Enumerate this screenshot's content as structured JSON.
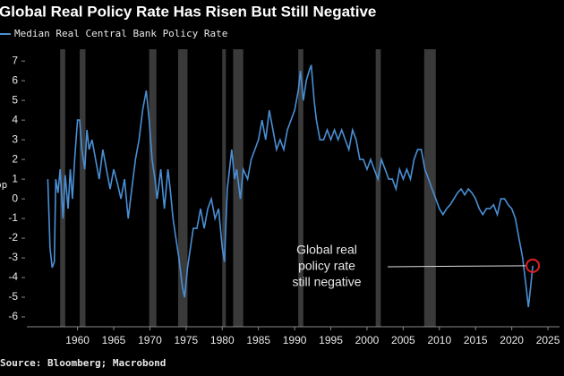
{
  "chart_data": {
    "type": "line",
    "title": "Global Real Policy Rate Has Risen But Still Negative",
    "y_label": "pp",
    "source": "Source: Bloomberg; Macrobond",
    "xlim": [
      1953,
      2026.6
    ],
    "ylim": [
      -6.5,
      7.6
    ],
    "xticks": [
      1960,
      1965,
      1970,
      1975,
      1980,
      1985,
      1990,
      1995,
      2000,
      2005,
      2010,
      2015,
      2020,
      2025
    ],
    "yticks": [
      -6,
      -5,
      -4,
      -3,
      -2,
      -1,
      0,
      1,
      2,
      3,
      4,
      5,
      6,
      7
    ],
    "grid": false,
    "shaded_periods": [
      [
        1957.6,
        1958.3
      ],
      [
        1960.3,
        1961.1
      ],
      [
        1969.9,
        1970.9
      ],
      [
        1973.9,
        1975.2
      ],
      [
        1980.0,
        1980.5
      ],
      [
        1981.5,
        1982.9
      ],
      [
        1990.5,
        1991.2
      ],
      [
        2001.2,
        2001.9
      ],
      [
        2007.9,
        2009.5
      ]
    ],
    "shade_color": "#3a3a3a",
    "x": [
      1955.9,
      1956.2,
      1956.5,
      1956.8,
      1957.0,
      1957.3,
      1957.6,
      1958.0,
      1958.3,
      1958.7,
      1959.0,
      1959.3,
      1959.6,
      1960.0,
      1960.3,
      1960.6,
      1961.0,
      1961.3,
      1961.6,
      1962.0,
      1962.5,
      1963.0,
      1963.5,
      1964.0,
      1964.5,
      1965.0,
      1965.5,
      1966.0,
      1966.5,
      1967.0,
      1967.5,
      1968.0,
      1968.5,
      1969.0,
      1969.5,
      1969.9,
      1970.3,
      1970.7,
      1971.0,
      1971.5,
      1972.0,
      1972.5,
      1972.8,
      1973.2,
      1973.6,
      1974.0,
      1974.5,
      1974.8,
      1975.2,
      1975.6,
      1976.0,
      1976.5,
      1977.0,
      1977.5,
      1978.0,
      1978.5,
      1979.0,
      1979.5,
      1980.0,
      1980.3,
      1980.7,
      1981.0,
      1981.3,
      1981.7,
      1982.0,
      1982.5,
      1982.9,
      1983.5,
      1984.0,
      1984.5,
      1985.0,
      1985.5,
      1986.0,
      1986.5,
      1987.0,
      1987.5,
      1988.0,
      1988.5,
      1989.0,
      1989.5,
      1990.0,
      1990.5,
      1990.8,
      1991.2,
      1991.6,
      1992.0,
      1992.3,
      1992.7,
      1993.0,
      1993.5,
      1994.0,
      1994.5,
      1995.0,
      1995.5,
      1996.0,
      1996.5,
      1997.0,
      1997.5,
      1998.0,
      1998.5,
      1999.0,
      1999.5,
      2000.0,
      2000.5,
      2001.0,
      2001.5,
      2002.0,
      2002.5,
      2003.0,
      2003.5,
      2004.0,
      2004.5,
      2005.0,
      2005.5,
      2006.0,
      2006.5,
      2007.0,
      2007.5,
      2008.0,
      2008.5,
      2009.0,
      2009.5,
      2010.0,
      2010.5,
      2011.0,
      2011.5,
      2012.0,
      2012.5,
      2013.0,
      2013.5,
      2014.0,
      2014.5,
      2015.0,
      2015.5,
      2016.0,
      2016.5,
      2017.0,
      2017.5,
      2018.0,
      2018.5,
      2019.0,
      2019.5,
      2020.0,
      2020.5,
      2021.0,
      2021.5,
      2022.0,
      2022.3,
      2022.6,
      2022.9
    ],
    "series": [
      {
        "name": "Median Real Central Bank Policy Rate",
        "color": "#4a8fd4",
        "values": [
          1.0,
          -2.5,
          -3.5,
          -3.2,
          1.0,
          0.3,
          1.5,
          -1.0,
          1.2,
          -0.5,
          1.5,
          0.0,
          2.0,
          4.0,
          4.0,
          2.5,
          1.5,
          3.5,
          2.5,
          3.0,
          2.0,
          1.0,
          2.5,
          1.5,
          0.5,
          1.5,
          0.8,
          0.0,
          1.0,
          -1.0,
          0.5,
          2.0,
          3.0,
          4.5,
          5.5,
          4.0,
          2.0,
          1.0,
          0.0,
          1.5,
          -0.5,
          1.5,
          0.5,
          -1.0,
          -2.0,
          -3.0,
          -4.5,
          -5.0,
          -3.5,
          -2.5,
          -1.5,
          -1.5,
          -0.5,
          -1.5,
          -0.5,
          0.0,
          -1.0,
          -0.5,
          -2.5,
          -3.2,
          0.5,
          1.5,
          2.5,
          1.0,
          1.5,
          0.0,
          1.5,
          1.0,
          2.0,
          2.5,
          3.0,
          4.0,
          3.0,
          4.5,
          3.5,
          2.5,
          3.0,
          2.5,
          3.5,
          4.0,
          4.5,
          5.5,
          6.5,
          5.0,
          6.0,
          6.5,
          6.8,
          5.0,
          4.0,
          3.0,
          3.0,
          3.5,
          3.0,
          3.5,
          3.0,
          3.5,
          3.0,
          2.5,
          3.5,
          3.0,
          2.0,
          2.0,
          1.5,
          2.0,
          1.5,
          1.0,
          2.0,
          1.5,
          1.0,
          1.0,
          0.5,
          1.5,
          1.0,
          1.5,
          1.0,
          2.0,
          2.5,
          2.5,
          1.5,
          1.0,
          0.5,
          0.0,
          -0.5,
          -0.8,
          -0.5,
          -0.3,
          0.0,
          0.3,
          0.5,
          0.2,
          0.5,
          0.3,
          0.0,
          -0.5,
          -0.8,
          -0.5,
          -0.5,
          -0.3,
          -0.8,
          0.0,
          0.0,
          -0.3,
          -0.5,
          -1.0,
          -2.0,
          -3.0,
          -4.5,
          -5.5,
          -4.5,
          -3.4
        ]
      }
    ],
    "annotation": {
      "lines": [
        "Global real",
        "policy rate",
        "still negative"
      ],
      "point": [
        2022.9,
        -3.4
      ],
      "color": "#e02020"
    }
  }
}
